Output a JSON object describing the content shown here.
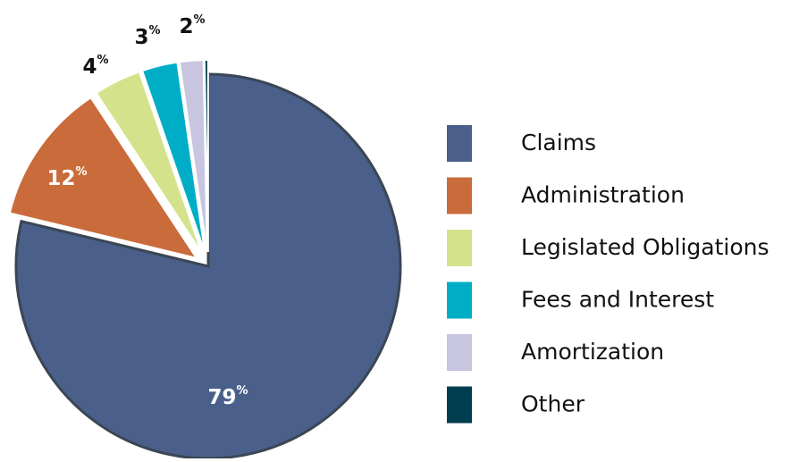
{
  "chart_data": {
    "type": "pie",
    "categories": [
      "Claims",
      "Administration",
      "Legislated Obligations",
      "Fees and Interest",
      "Amortization",
      "Other"
    ],
    "values": [
      79,
      12,
      4,
      3,
      2,
      0.3
    ],
    "value_labels": [
      "79%",
      "12%",
      "4%",
      "3%",
      "2%",
      null
    ],
    "colors": [
      "#4a5f8a",
      "#c96b3a",
      "#d4e28c",
      "#00adc6",
      "#c8c5e1",
      "#003d4f"
    ],
    "legend": "right"
  }
}
